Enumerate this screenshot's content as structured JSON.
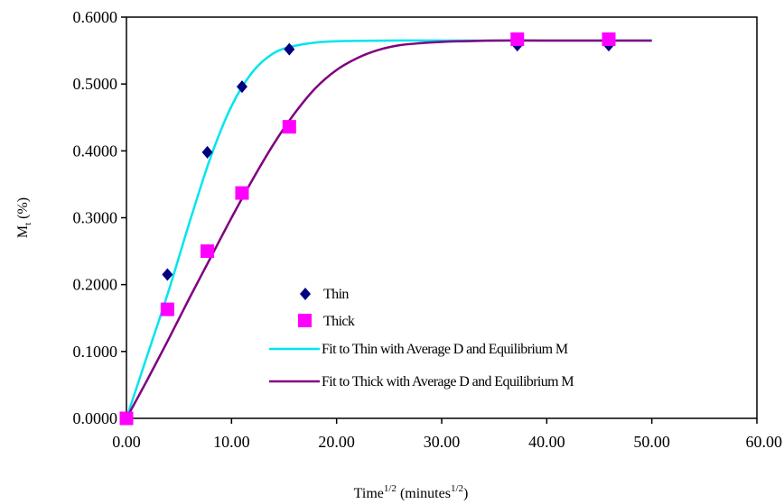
{
  "chart_data": {
    "type": "scatter",
    "title": "",
    "xlabel": {
      "main": "Time",
      "main_sup": "1/2",
      "unit_open": " (minutes",
      "unit_sup": "1/2",
      "unit_close": ")"
    },
    "ylabel": {
      "main": "M",
      "sub": "t",
      "unit": " (%)"
    },
    "xlim": [
      0,
      60
    ],
    "ylim": [
      0,
      0.6
    ],
    "xticks": [
      "0.00",
      "10.00",
      "20.00",
      "30.00",
      "40.00",
      "50.00",
      "60.00"
    ],
    "yticks": [
      "0.0000",
      "0.1000",
      "0.2000",
      "0.3000",
      "0.4000",
      "0.5000",
      "0.6000"
    ],
    "grid": false,
    "legend_position": "bottom-center",
    "series": [
      {
        "name": "Thin",
        "kind": "points",
        "marker": "diamond",
        "color": "#000080",
        "x": [
          0.0,
          3.9,
          7.7,
          11.0,
          15.5,
          37.2,
          45.9
        ],
        "y": [
          0.0,
          0.215,
          0.398,
          0.496,
          0.552,
          0.558,
          0.558
        ]
      },
      {
        "name": "Thick",
        "kind": "points",
        "marker": "square",
        "color": "#ff00ff",
        "x": [
          0.0,
          3.9,
          7.7,
          11.0,
          15.5,
          37.2,
          45.9
        ],
        "y": [
          0.0,
          0.163,
          0.25,
          0.337,
          0.436,
          0.567,
          0.567
        ]
      },
      {
        "name": "Fit to Thin with Average D and Equilibrium M",
        "kind": "line",
        "color": "#00e5ee",
        "x": [
          0,
          2,
          4,
          6,
          8,
          10,
          12,
          14,
          16,
          18,
          20,
          25,
          30,
          40,
          50
        ],
        "y": [
          0.0,
          0.095,
          0.19,
          0.293,
          0.39,
          0.467,
          0.518,
          0.546,
          0.557,
          0.562,
          0.564,
          0.565,
          0.565,
          0.565,
          0.565
        ]
      },
      {
        "name": "Fit to Thick with Average D and Equilibrium M",
        "kind": "line",
        "color": "#800080",
        "x": [
          0,
          2,
          4,
          6,
          8,
          10,
          12,
          14,
          16,
          18,
          20,
          22,
          24,
          26,
          28,
          30,
          35,
          40,
          50
        ],
        "y": [
          0.0,
          0.058,
          0.118,
          0.18,
          0.24,
          0.3,
          0.357,
          0.41,
          0.456,
          0.494,
          0.521,
          0.539,
          0.551,
          0.558,
          0.561,
          0.563,
          0.565,
          0.565,
          0.565
        ]
      }
    ]
  }
}
